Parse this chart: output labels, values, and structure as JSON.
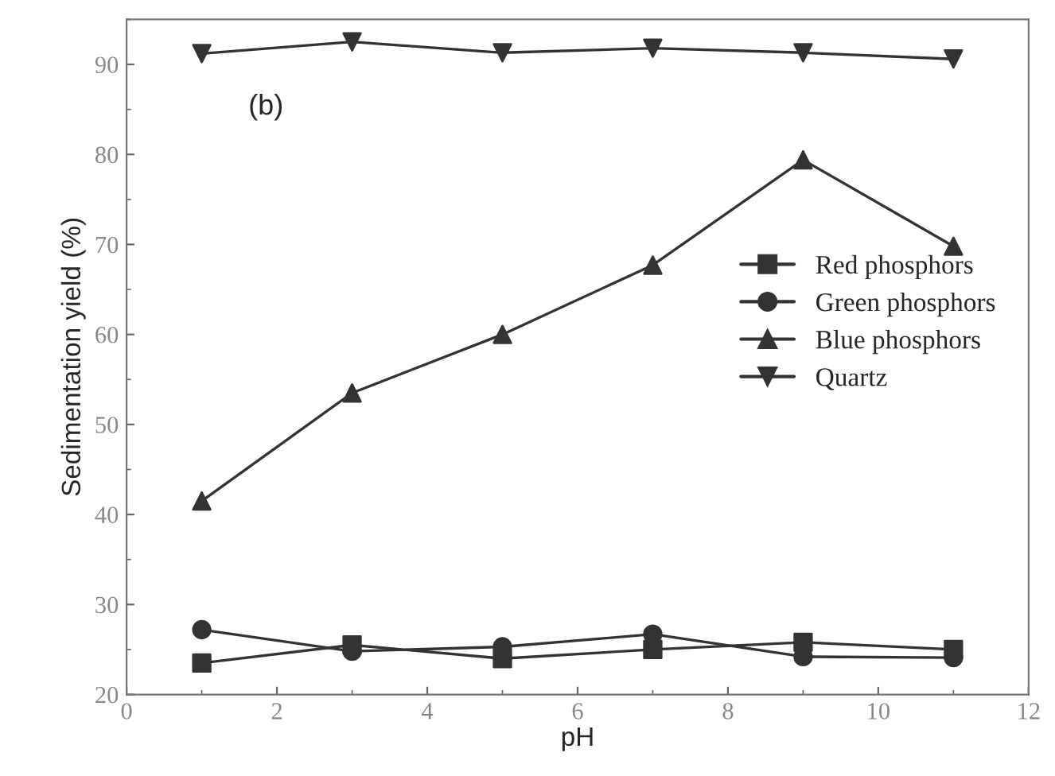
{
  "chart_data": {
    "type": "line",
    "xlabel": "pH",
    "ylabel": "Sedimentation yield (%)",
    "annotations": [
      "(b)"
    ],
    "x": [
      1,
      3,
      5,
      7,
      9,
      11
    ],
    "series": [
      {
        "name": "Red phosphors",
        "color": "#333333",
        "marker": "square",
        "values": [
          23.5,
          25.5,
          24,
          25,
          25.8,
          25
        ]
      },
      {
        "name": "Green phosphors",
        "color": "#333333",
        "marker": "circle",
        "values": [
          27.2,
          24.8,
          25.3,
          26.7,
          24.2,
          24.1
        ]
      },
      {
        "name": "Blue phosphors",
        "color": "#333333",
        "marker": "triangle",
        "values": [
          41.5,
          53.5,
          60,
          67.7,
          79.4,
          69.8
        ]
      },
      {
        "name": "Quartz",
        "color": "#333333",
        "marker": "triangle_down",
        "values": [
          91.2,
          92.5,
          91.3,
          91.8,
          91.3,
          90.6
        ]
      }
    ],
    "xlim": [
      0,
      12
    ],
    "ylim": [
      20,
      95
    ],
    "xticks": [
      0,
      2,
      4,
      6,
      8,
      10,
      12
    ],
    "yticks": [
      20,
      30,
      40,
      50,
      60,
      70,
      80,
      90
    ],
    "grid": false,
    "legend": "center right",
    "line_style": "solid"
  }
}
